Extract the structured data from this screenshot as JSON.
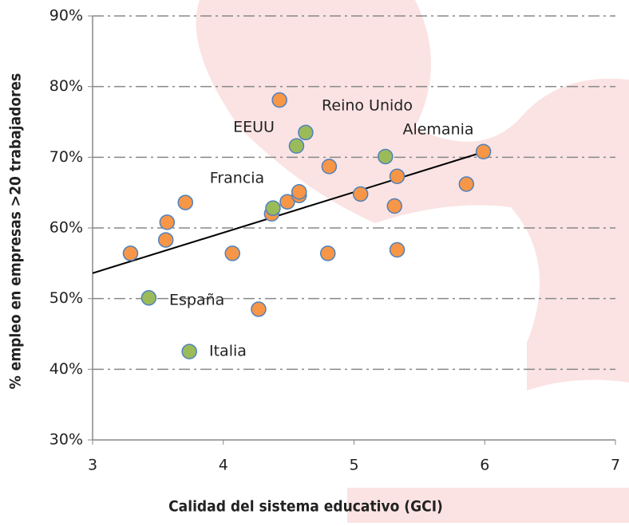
{
  "chart_data": {
    "type": "scatter",
    "x_label": "Calidad del sistema educativo (GCI)",
    "y_label": "% empleo en empresas >20 trabajadores",
    "xlim": [
      3,
      7
    ],
    "xticks": [
      3,
      4,
      5,
      6,
      7
    ],
    "ylim": [
      30,
      90
    ],
    "yticks": [
      {
        "value": 30,
        "label": "30%"
      },
      {
        "value": 40,
        "label": "40%"
      },
      {
        "value": 50,
        "label": "50%"
      },
      {
        "value": 60,
        "label": "60%"
      },
      {
        "value": 70,
        "label": "70%"
      },
      {
        "value": 80,
        "label": "80%"
      },
      {
        "value": 90,
        "label": "90%"
      }
    ],
    "grid": true,
    "series": [
      {
        "color": "#f79646",
        "x": [
          3.29,
          3.57,
          3.56,
          3.71,
          4.07,
          4.27,
          4.43,
          4.37,
          4.49,
          4.58,
          4.58,
          4.81,
          4.8,
          5.05,
          5.33,
          5.31,
          5.33,
          5.86,
          5.99
        ],
        "values": [
          56.4,
          60.8,
          58.3,
          63.6,
          56.4,
          48.5,
          78.1,
          62.0,
          63.7,
          64.6,
          65.1,
          68.7,
          56.4,
          64.8,
          67.3,
          63.1,
          56.9,
          66.2,
          70.8
        ]
      },
      {
        "color": "#9bbb59",
        "x": [
          3.43,
          3.74,
          4.38,
          4.56,
          4.63,
          5.24
        ],
        "values": [
          50.1,
          42.5,
          62.8,
          71.6,
          73.5,
          70.1
        ]
      }
    ],
    "trendline": {
      "color": "#000000",
      "x": [
        3,
        6
      ],
      "values": [
        53.6,
        70.8
      ]
    },
    "annotations": [
      "EEUU",
      "Reino Unido",
      "Alemania",
      "Francia",
      "España",
      "Italia"
    ]
  }
}
